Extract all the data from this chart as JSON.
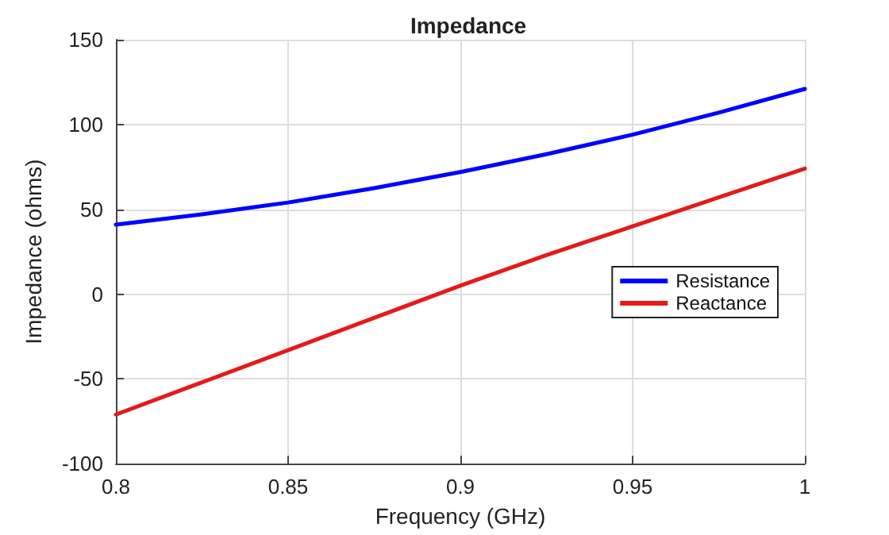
{
  "chart_data": {
    "type": "line",
    "title": "Impedance",
    "xlabel": "Frequency (GHz)",
    "ylabel": "Impedance (ohms)",
    "x": [
      0.8,
      0.825,
      0.85,
      0.875,
      0.9,
      0.925,
      0.95,
      0.975,
      1.0
    ],
    "series": [
      {
        "name": "Resistance",
        "color": "#0000ff",
        "values": [
          41,
          47,
          54,
          62.5,
          72,
          82.5,
          94,
          107,
          121
        ]
      },
      {
        "name": "Reactance",
        "color": "#e41a1c",
        "values": [
          -71,
          -52,
          -33,
          -14,
          5,
          23,
          40,
          57,
          74
        ]
      }
    ],
    "xlim": [
      0.8,
      1.0
    ],
    "xticks": [
      0.8,
      0.85,
      0.9,
      0.95,
      1
    ],
    "ylim": [
      -100,
      150
    ],
    "yticks": [
      -100,
      -50,
      0,
      50,
      100,
      150
    ],
    "grid": true,
    "legend": "right",
    "marker": "none",
    "line_style": "solid"
  }
}
